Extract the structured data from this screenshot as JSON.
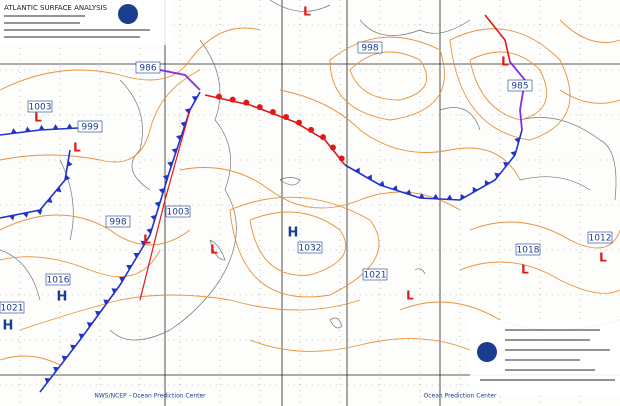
{
  "header": {
    "title": "ATLANTIC SURFACE ANALYSIS"
  },
  "pressure_labels": [
    "986",
    "1003",
    "999",
    "998",
    "1003",
    "1016",
    "1021",
    "1032",
    "1021",
    "985",
    "998",
    "1018",
    "1012"
  ],
  "highs": [
    "H",
    "H",
    "H"
  ],
  "lows": [
    "L",
    "L",
    "L",
    "L",
    "L",
    "L",
    "L",
    "L",
    "L"
  ],
  "footer": {
    "left": "NWS/NCEP - Ocean Prediction Center",
    "right": "Ocean Prediction Center"
  }
}
